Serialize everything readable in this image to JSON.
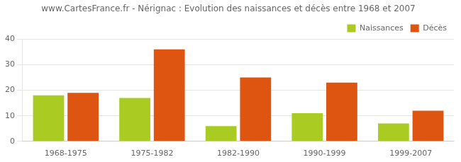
{
  "chart_data": {
    "type": "bar",
    "title": "www.CartesFrance.fr - Nérignac : Evolution des naissances et décès entre 1968 et 2007",
    "categories": [
      "1968-1975",
      "1975-1982",
      "1982-1990",
      "1990-1999",
      "1999-2007"
    ],
    "series": [
      {
        "name": "Naissances",
        "color": "#aacc22",
        "values": [
          18,
          17,
          6,
          11,
          7
        ]
      },
      {
        "name": "Décès",
        "color": "#dd5511",
        "values": [
          19,
          36,
          25,
          23,
          12
        ]
      }
    ],
    "ylim": [
      0,
      40
    ],
    "yticks": [
      0,
      10,
      20,
      30,
      40
    ],
    "grid": true,
    "legend": "upper right"
  }
}
